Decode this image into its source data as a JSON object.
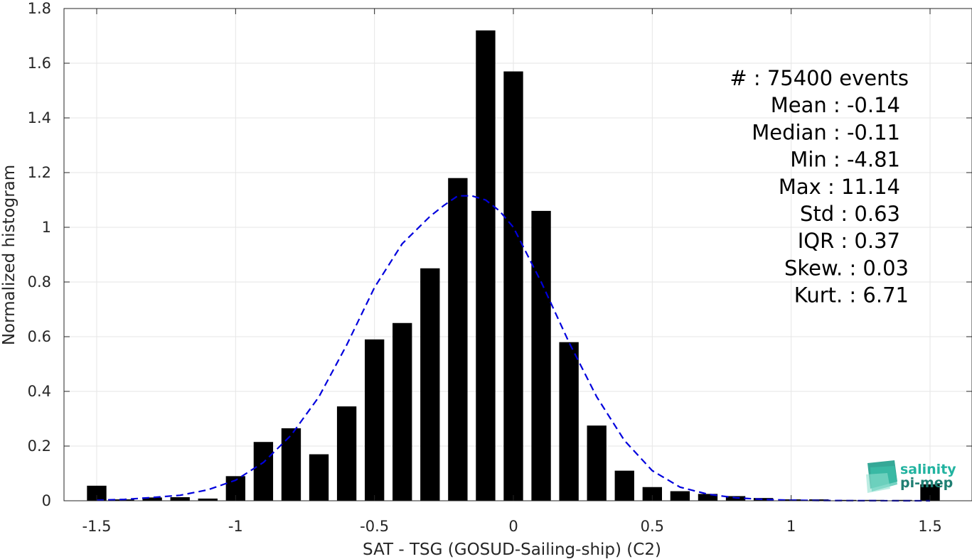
{
  "chart_data": {
    "type": "bar",
    "xlabel": "SAT - TSG (GOSUD-Sailing-ship) (C2)",
    "ylabel": "Normalized histogram",
    "xlim": [
      -1.62,
      1.62
    ],
    "ylim": [
      0,
      1.8
    ],
    "x_ticks": [
      -1.5,
      -1,
      -0.5,
      0,
      0.5,
      1,
      1.5
    ],
    "x_tick_labels": [
      "-1.5",
      "-1",
      "-0.5",
      "0",
      "0.5",
      "1",
      "1.5"
    ],
    "y_ticks": [
      0,
      0.2,
      0.4,
      0.6,
      0.8,
      1,
      1.2,
      1.4,
      1.6,
      1.8
    ],
    "y_tick_labels": [
      "0",
      "0.2",
      "0.4",
      "0.6",
      "0.8",
      "1",
      "1.2",
      "1.4",
      "1.6",
      "1.8"
    ],
    "grid": true,
    "bar_color": "#000000",
    "bar_width": 0.07,
    "bars": {
      "x": [
        -1.5,
        -1.4,
        -1.3,
        -1.2,
        -1.1,
        -1.0,
        -0.9,
        -0.8,
        -0.7,
        -0.6,
        -0.5,
        -0.4,
        -0.3,
        -0.2,
        -0.1,
        0.0,
        0.1,
        0.2,
        0.3,
        0.4,
        0.5,
        0.6,
        0.7,
        0.8,
        0.9,
        1.0,
        1.1,
        1.2,
        1.3,
        1.4,
        1.5
      ],
      "values": [
        0.055,
        0.005,
        0.012,
        0.013,
        0.008,
        0.09,
        0.215,
        0.265,
        0.17,
        0.345,
        0.59,
        0.65,
        0.85,
        1.18,
        1.72,
        1.57,
        1.06,
        0.58,
        0.275,
        0.11,
        0.05,
        0.035,
        0.025,
        0.017,
        0.01,
        0.005,
        0.005,
        0.003,
        0.003,
        0.003,
        0.06
      ]
    },
    "fit_curve": {
      "style": "dashed",
      "color": "#0000dd",
      "x": [
        -1.5,
        -1.4,
        -1.3,
        -1.2,
        -1.1,
        -1.0,
        -0.9,
        -0.8,
        -0.7,
        -0.6,
        -0.5,
        -0.4,
        -0.3,
        -0.25,
        -0.2,
        -0.15,
        -0.1,
        -0.05,
        0.0,
        0.05,
        0.1,
        0.2,
        0.3,
        0.4,
        0.5,
        0.6,
        0.7,
        0.8,
        0.9,
        1.0,
        1.1,
        1.2,
        1.3,
        1.4,
        1.5
      ],
      "y": [
        0.002,
        0.005,
        0.012,
        0.02,
        0.04,
        0.075,
        0.14,
        0.24,
        0.38,
        0.57,
        0.78,
        0.94,
        1.04,
        1.08,
        1.115,
        1.115,
        1.1,
        1.06,
        1.0,
        0.9,
        0.8,
        0.58,
        0.38,
        0.22,
        0.11,
        0.05,
        0.024,
        0.011,
        0.005,
        0.002,
        0.001,
        0.0005,
        0.0002,
        0.0001,
        0.0
      ]
    },
    "annotations": [
      "#  : 75400 events",
      "Mean : -0.14",
      "Median : -0.11",
      "Min : -4.81",
      "Max : 11.14",
      "Std : 0.63",
      "IQR : 0.37",
      "Skew. : 0.03",
      "Kurt. : 6.71"
    ]
  },
  "logo": {
    "line1": "salinity",
    "line2": "pi-mep",
    "color1": "#22b3a0",
    "color2": "#1f7f73"
  }
}
